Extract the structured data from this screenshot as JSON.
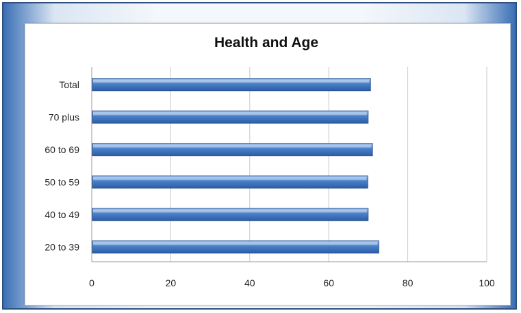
{
  "chart_data": {
    "type": "bar",
    "orientation": "horizontal",
    "title": "Health and Age",
    "categories": [
      "20 to 39",
      "40 to 49",
      "50 to 59",
      "60 to 69",
      "70 plus",
      "Total"
    ],
    "values": [
      72.5,
      69.8,
      69.7,
      70.9,
      69.8,
      70.4
    ],
    "xlim": [
      0,
      100
    ],
    "xticks": [
      0,
      20,
      40,
      60,
      80,
      100
    ],
    "grid": true,
    "bar_color": "#4a7fc8",
    "bar_color_light": "#9fc3ee",
    "bar_color_dark": "#2a5ea5"
  }
}
